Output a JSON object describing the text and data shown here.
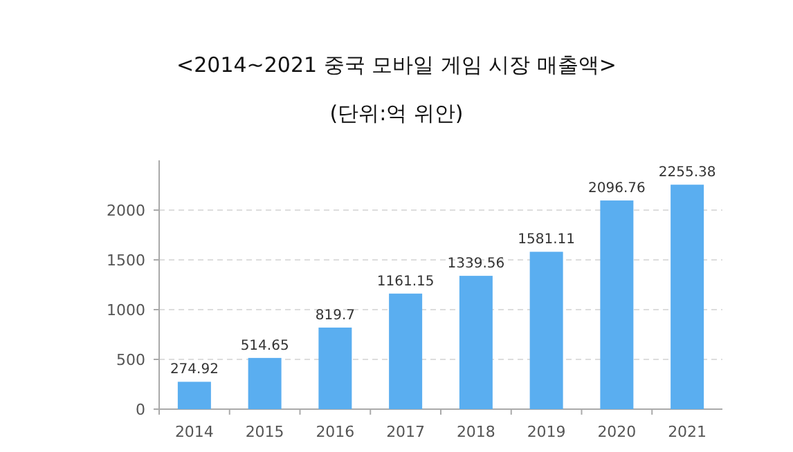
{
  "chart_data": {
    "type": "bar",
    "title": "<2014~2021 중국 모바일 게임 시장 매출액>",
    "subtitle": "(단위:억 위안)",
    "categories": [
      "2014",
      "2015",
      "2016",
      "2017",
      "2018",
      "2019",
      "2020",
      "2021"
    ],
    "values": [
      274.92,
      514.65,
      819.7,
      1161.15,
      1339.56,
      1581.11,
      2096.76,
      2255.38
    ],
    "color": "#5aaef0",
    "ylim": [
      0,
      2500
    ],
    "yticks": [
      0,
      500,
      1000,
      1500,
      2000
    ],
    "grid": "y",
    "data_labels": true
  }
}
